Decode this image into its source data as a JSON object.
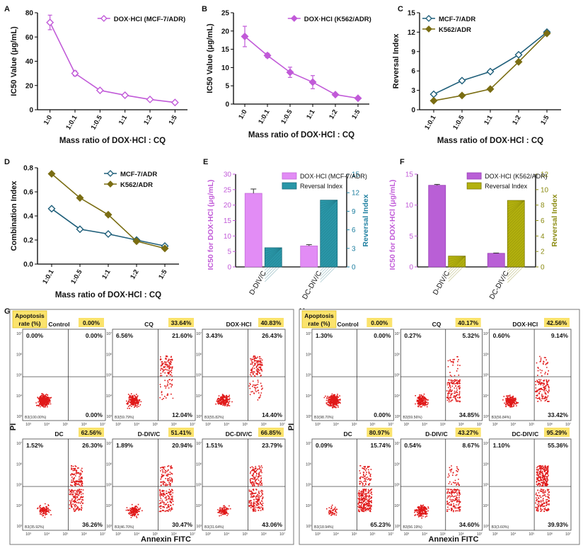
{
  "colors": {
    "purple": "#c15ad8",
    "purple_light": "#e28cf5",
    "teal": "#1f5f7a",
    "teal_bar": "#2a97a8",
    "olive": "#7a6d12",
    "olive_bar": "#b3b10e",
    "red": "#e01818",
    "badge": "#fbe36c"
  },
  "chart_data": [
    {
      "panel": "A",
      "type": "line",
      "title": "",
      "xlabel": "Mass ratio of DOX·HCl : CQ",
      "ylabel": "IC50 Value (μg/mL)",
      "categories": [
        "1:0",
        "1:0.1",
        "1:0.5",
        "1:1",
        "1:2",
        "1:5"
      ],
      "ylim": [
        0,
        80
      ],
      "yticks": [
        0,
        20,
        40,
        60,
        80
      ],
      "legend": [
        "DOX·HCl (MCF-7/ADR)"
      ],
      "series": [
        {
          "name": "DOX·HCl (MCF-7/ADR)",
          "values": [
            72,
            30,
            16,
            12,
            8.5,
            6
          ],
          "errors": [
            6,
            2,
            1.2,
            1,
            0.8,
            0.6
          ]
        }
      ]
    },
    {
      "panel": "B",
      "type": "line",
      "title": "",
      "xlabel": "Mass ratio of DOX·HCl : CQ",
      "ylabel": "IC50 Value (μg/mL)",
      "categories": [
        "1:0",
        "1:0.1",
        "1:0.5",
        "1:1",
        "1:2",
        "1:5"
      ],
      "ylim": [
        0,
        25
      ],
      "yticks": [
        0,
        5,
        10,
        15,
        20,
        25
      ],
      "legend": [
        "DOX·HCl (K562/ADR)"
      ],
      "series": [
        {
          "name": "DOX·HCl (K562/ADR)",
          "values": [
            18.5,
            13.3,
            8.7,
            6,
            2.6,
            1.6
          ],
          "errors": [
            2.8,
            0.6,
            1.4,
            1.8,
            0.2,
            0.2
          ]
        }
      ]
    },
    {
      "panel": "C",
      "type": "line",
      "title": "",
      "xlabel": "Mass ratio of DOX·HCl : CQ",
      "ylabel": "Reversal Index",
      "categories": [
        "1:0.1",
        "1:0.5",
        "1:1",
        "1:2",
        "1:5"
      ],
      "ylim": [
        0,
        15
      ],
      "yticks": [
        0,
        3,
        6,
        9,
        12,
        15
      ],
      "legend": [
        "MCF-7/ADR",
        "K562/ADR"
      ],
      "series": [
        {
          "name": "MCF-7/ADR",
          "values": [
            2.4,
            4.5,
            5.9,
            8.5,
            12
          ]
        },
        {
          "name": "K562/ADR",
          "values": [
            1.4,
            2.2,
            3.2,
            7.4,
            11.8
          ]
        }
      ]
    },
    {
      "panel": "D",
      "type": "line",
      "title": "",
      "xlabel": "Mass ratio of DOX·HCl : CQ",
      "ylabel": "Combination Index",
      "categories": [
        "1:0.1",
        "1:0.5",
        "1:1",
        "1:2",
        "1:5"
      ],
      "ylim": [
        0,
        0.8
      ],
      "yticks": [
        0.0,
        0.2,
        0.4,
        0.6,
        0.8
      ],
      "legend": [
        "MCF-7/ADR",
        "K562/ADR"
      ],
      "series": [
        {
          "name": "MCF-7/ADR",
          "values": [
            0.46,
            0.29,
            0.25,
            0.2,
            0.15
          ]
        },
        {
          "name": "K562/ADR",
          "values": [
            0.75,
            0.55,
            0.41,
            0.19,
            0.13
          ]
        }
      ]
    },
    {
      "panel": "E",
      "type": "bar",
      "title": "",
      "ylabel": "IC50 for DOX·HCl (μg/mL)",
      "y2label": "Reversal Index",
      "categories": [
        "D-DIV/C",
        "DC-DIV/C"
      ],
      "ylim": [
        0,
        30
      ],
      "yticks": [
        0,
        5,
        10,
        15,
        20,
        25,
        30
      ],
      "y2lim": [
        0,
        15
      ],
      "y2ticks": [
        0,
        3,
        6,
        9,
        12,
        15
      ],
      "legend": [
        "DOX·HCl (MCF-7/ADR)",
        "Reversal Index"
      ],
      "series": [
        {
          "name": "DOX·HCl (MCF-7/ADR)",
          "axis": "left",
          "values": [
            23.8,
            6.8
          ],
          "errors": [
            1.4,
            0.4
          ]
        },
        {
          "name": "Reversal Index",
          "axis": "right",
          "values": [
            3.1,
            10.8
          ]
        }
      ]
    },
    {
      "panel": "F",
      "type": "bar",
      "title": "",
      "ylabel": "IC50 for DOX·HCl (μg/mL)",
      "y2label": "Reversal Index",
      "categories": [
        "D-DIV/C",
        "DC-DIV/C"
      ],
      "ylim": [
        0,
        15
      ],
      "yticks": [
        0,
        5,
        10,
        15
      ],
      "y2lim": [
        0,
        12
      ],
      "y2ticks": [
        0,
        2,
        4,
        6,
        8,
        10,
        12
      ],
      "legend": [
        "DOX·HCl (K562/ADR)",
        "Reversal Index"
      ],
      "series": [
        {
          "name": "DOX·HCl (K562/ADR)",
          "axis": "left",
          "values": [
            13.2,
            2.2
          ],
          "errors": [
            0.15,
            0.05
          ]
        },
        {
          "name": "Reversal Index",
          "axis": "right",
          "values": [
            1.4,
            8.6
          ]
        }
      ]
    },
    {
      "panel": "G",
      "type": "scatter",
      "xlabel": "Annexin FITC",
      "ylabel": "PI",
      "badge_label": "Apoptosis rate (%)",
      "plots": [
        {
          "name": "Control",
          "rate": "0.00%",
          "ul": "0.00%",
          "ur": "0.00%",
          "lr": "0.00%",
          "ll": "B3(100.00%)"
        },
        {
          "name": "CQ",
          "rate": "33.64%",
          "ul": "6.56%",
          "ur": "21.60%",
          "lr": "12.04%",
          "ll": "B3(59.79%)"
        },
        {
          "name": "DOX·HCl",
          "rate": "40.83%",
          "ul": "3.43%",
          "ur": "26.43%",
          "lr": "14.40%",
          "ll": "B3(55.82%)"
        },
        {
          "name": "DC",
          "rate": "62.56%",
          "ul": "1.52%",
          "ur": "26.30%",
          "lr": "36.26%",
          "ll": "B3(35.92%)"
        },
        {
          "name": "D-DIV/C",
          "rate": "51.41%",
          "ul": "1.89%",
          "ur": "20.94%",
          "lr": "30.47%",
          "ll": "B3(46.70%)"
        },
        {
          "name": "DC-DIV/C",
          "rate": "66.85%",
          "ul": "1.51%",
          "ur": "23.79%",
          "lr": "43.06%",
          "ll": "B3(31.64%)"
        }
      ]
    },
    {
      "panel": "H",
      "type": "scatter",
      "xlabel": "Annexin FITC",
      "ylabel": "PI",
      "badge_label": "Apoptosis rate (%)",
      "plots": [
        {
          "name": "Control",
          "rate": "0.00%",
          "ul": "1.30%",
          "ur": "0.00%",
          "lr": "0.00%",
          "ll": "B3(98.70%)"
        },
        {
          "name": "CQ",
          "rate": "40.17%",
          "ul": "0.27%",
          "ur": "5.32%",
          "lr": "34.85%",
          "ll": "B3(59.56%)"
        },
        {
          "name": "DOX·HCl",
          "rate": "42.56%",
          "ul": "0.60%",
          "ur": "9.14%",
          "lr": "33.42%",
          "ll": "B3(56.84%)"
        },
        {
          "name": "DC",
          "rate": "80.97%",
          "ul": "0.09%",
          "ur": "15.74%",
          "lr": "65.23%",
          "ll": "B3(18.94%)"
        },
        {
          "name": "D-DIV/C",
          "rate": "43.27%",
          "ul": "0.54%",
          "ur": "8.67%",
          "lr": "34.60%",
          "ll": "B3(56.19%)"
        },
        {
          "name": "DC-DIV/C",
          "rate": "95.29%",
          "ul": "1.10%",
          "ur": "55.36%",
          "lr": "39.93%",
          "ll": "B3(3.60%)"
        }
      ]
    }
  ],
  "flow_axis": {
    "x_ticks": [
      "10³",
      "10⁴",
      "10⁵",
      "10⁶",
      "10⁷"
    ],
    "y_ticks": [
      "10⁷",
      "10⁶",
      "10⁵",
      "10⁴",
      "10³"
    ]
  }
}
